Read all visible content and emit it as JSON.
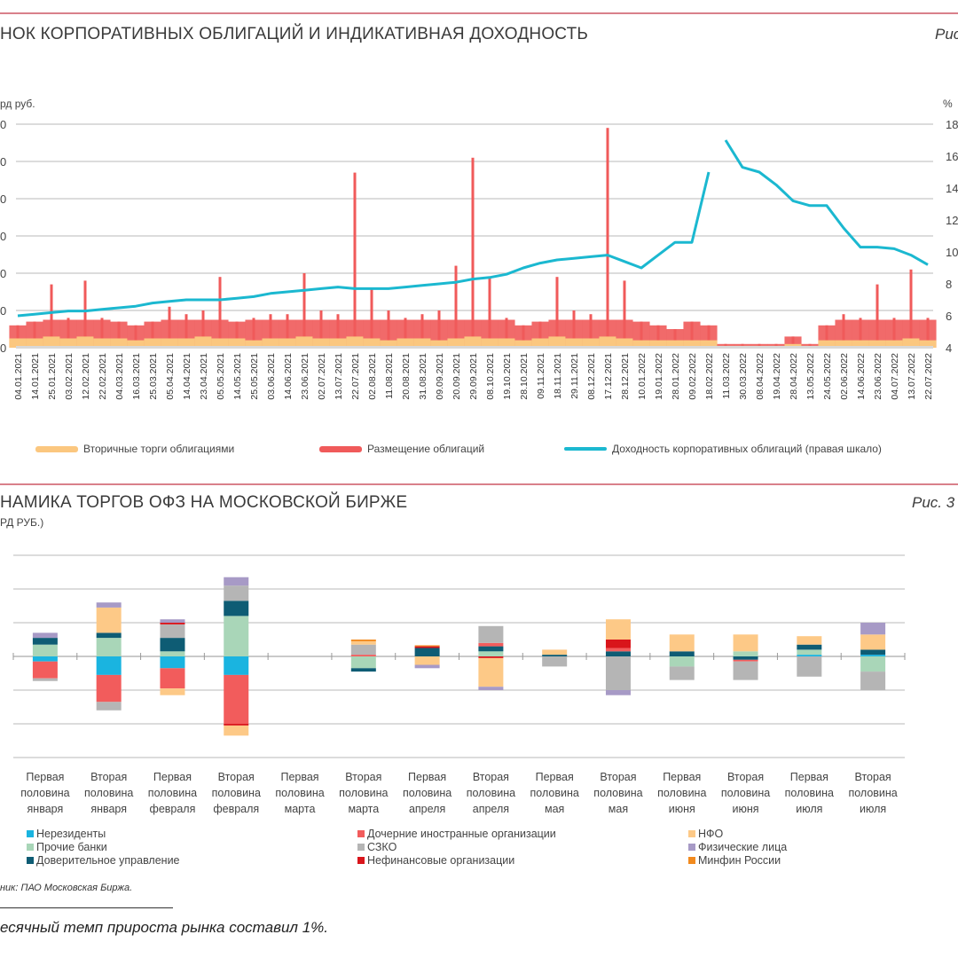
{
  "chart_data": [
    {
      "type": "bar+line",
      "title": "НОК КОРПОРАТИВНЫХ ОБЛИГАЦИЙ И ИНДИКАТИВНАЯ ДОХОДНОСТЬ",
      "figure_label": "Рис",
      "ylabel_left": "рд руб.",
      "ylabel_right": "%",
      "left_tick_labels": [
        "0",
        "0",
        "0",
        "0",
        "0",
        "0",
        "0"
      ],
      "right_ticks": [
        18,
        16,
        14,
        12,
        10,
        8,
        6,
        4
      ],
      "ylim_right": [
        4,
        18
      ],
      "ylim_left_gridsteps": [
        0,
        6
      ],
      "grid": true,
      "legend_position": "bottom",
      "categories": [
        "04.01.2021",
        "14.01.2021",
        "25.01.2021",
        "03.02.2021",
        "12.02.2021",
        "22.02.2021",
        "04.03.2021",
        "16.03.2021",
        "25.03.2021",
        "05.04.2021",
        "14.04.2021",
        "23.04.2021",
        "05.05.2021",
        "14.05.2021",
        "25.05.2021",
        "03.06.2021",
        "14.06.2021",
        "23.06.2021",
        "02.07.2021",
        "13.07.2021",
        "22.07.2021",
        "02.08.2021",
        "11.08.2021",
        "20.08.2021",
        "31.08.2021",
        "09.09.2021",
        "20.09.2021",
        "29.09.2021",
        "08.10.2021",
        "19.10.2021",
        "28.10.2021",
        "09.11.2021",
        "18.11.2021",
        "29.11.2021",
        "08.12.2021",
        "17.12.2021",
        "28.12.2021",
        "10.01.2022",
        "19.01.2022",
        "28.01.2022",
        "09.02.2022",
        "18.02.2022",
        "11.03.2022",
        "30.03.2022",
        "08.04.2022",
        "19.04.2022",
        "28.04.2022",
        "13.05.2022",
        "24.05.2022",
        "02.06.2022",
        "14.06.2022",
        "23.06.2022",
        "04.07.2022",
        "13.07.2022",
        "22.07.2022"
      ],
      "series": [
        {
          "name": "Вторичные торги облигациями",
          "type": "bar",
          "axis": "left",
          "color": "#fbc77f",
          "values": [
            0.25,
            0.25,
            0.3,
            0.25,
            0.3,
            0.25,
            0.25,
            0.2,
            0.25,
            0.25,
            0.25,
            0.3,
            0.25,
            0.25,
            0.2,
            0.25,
            0.25,
            0.3,
            0.25,
            0.25,
            0.3,
            0.25,
            0.2,
            0.25,
            0.25,
            0.2,
            0.25,
            0.3,
            0.25,
            0.25,
            0.2,
            0.25,
            0.3,
            0.25,
            0.25,
            0.3,
            0.25,
            0.2,
            0.2,
            0.2,
            0.2,
            0.2,
            0.05,
            0.05,
            0.05,
            0.05,
            0.1,
            0.05,
            0.2,
            0.2,
            0.2,
            0.2,
            0.2,
            0.25,
            0.2
          ]
        },
        {
          "name": "Размещение облигаций",
          "type": "bar",
          "axis": "left",
          "color": "#f05a5a",
          "values": [
            0.6,
            0.7,
            1.7,
            0.8,
            1.8,
            0.8,
            0.7,
            0.6,
            0.7,
            1.1,
            0.9,
            1.0,
            1.9,
            0.7,
            0.8,
            0.9,
            0.9,
            2.0,
            1.0,
            0.9,
            4.7,
            1.6,
            1.0,
            0.8,
            0.9,
            1.0,
            2.2,
            5.1,
            1.9,
            0.8,
            0.6,
            0.7,
            1.9,
            1.0,
            0.9,
            5.9,
            1.8,
            0.7,
            0.6,
            0.5,
            0.7,
            0.6,
            0.1,
            0.1,
            0.1,
            0.1,
            0.3,
            0.1,
            0.6,
            0.9,
            0.8,
            1.7,
            0.8,
            2.1,
            0.8
          ]
        },
        {
          "name": "Доходность корпоративных облигаций (правая шкало)",
          "type": "line",
          "axis": "right",
          "color": "#1bb8d0",
          "values": [
            6.0,
            6.1,
            6.2,
            6.3,
            6.3,
            6.4,
            6.5,
            6.6,
            6.8,
            6.9,
            7.0,
            7.0,
            7.0,
            7.1,
            7.2,
            7.4,
            7.5,
            7.6,
            7.7,
            7.8,
            7.7,
            7.7,
            7.7,
            7.8,
            7.9,
            8.0,
            8.1,
            8.3,
            8.4,
            8.6,
            9.0,
            9.3,
            9.5,
            9.6,
            9.7,
            9.8,
            9.4,
            9.0,
            9.8,
            10.6,
            10.6,
            15.0,
            17.0,
            15.3,
            15.0,
            14.2,
            13.2,
            12.9,
            12.9,
            11.5,
            10.3,
            10.3,
            10.2,
            9.8,
            9.2
          ]
        }
      ]
    },
    {
      "type": "stacked-bar",
      "title": "НАМИКА ТОРГОВ ОФЗ НА МОСКОВСКОЙ БИРЖЕ",
      "figure_label": "Рис. 3",
      "ylabel": "РД РУБ.)",
      "ylim_gridsteps": [
        -3,
        3
      ],
      "grid": true,
      "legend_position": "bottom",
      "categories": [
        [
          "Первая",
          "половина",
          "января"
        ],
        [
          "Вторая",
          "половина",
          "января"
        ],
        [
          "Первая",
          "половина",
          "февраля"
        ],
        [
          "Вторая",
          "половина",
          "февраля"
        ],
        [
          "Первая",
          "половина",
          "марта"
        ],
        [
          "Вторая",
          "половина",
          "марта"
        ],
        [
          "Первая",
          "половина",
          "апреля"
        ],
        [
          "Вторая",
          "половина",
          "апреля"
        ],
        [
          "Первая",
          "половина",
          "мая"
        ],
        [
          "Вторая",
          "половина",
          "мая"
        ],
        [
          "Первая",
          "половина",
          "июня"
        ],
        [
          "Вторая",
          "половина",
          "июня"
        ],
        [
          "Первая",
          "половина",
          "июля"
        ],
        [
          "Вторая",
          "половина",
          "июля"
        ]
      ],
      "series": [
        {
          "name": "Нерезиденты",
          "color": "#1ab4e0",
          "values": [
            -0.15,
            -0.55,
            -0.35,
            -0.55,
            0,
            0,
            0,
            0,
            0,
            0,
            0,
            0,
            0.05,
            0.05
          ]
        },
        {
          "name": "Прочие банки",
          "color": "#a9d6b8",
          "values": [
            0.35,
            0.55,
            0.15,
            1.2,
            0,
            -0.35,
            0,
            0.15,
            0,
            0,
            -0.3,
            0.15,
            0.15,
            -0.45
          ]
        },
        {
          "name": "Доверительное управление",
          "color": "#0e5c74",
          "values": [
            0.2,
            0.15,
            0.4,
            0.45,
            0,
            -0.1,
            0.25,
            0.15,
            0.05,
            0.15,
            0.15,
            -0.1,
            0.15,
            0.15
          ]
        },
        {
          "name": "Дочерние иностранные организации",
          "color": "#f25c5c",
          "values": [
            -0.5,
            -0.8,
            -0.6,
            -1.45,
            0,
            0.05,
            0,
            0.1,
            0,
            0.1,
            0,
            -0.05,
            0,
            0
          ]
        },
        {
          "name": "СЗКО",
          "color": "#b5b5b5",
          "values": [
            -0.08,
            -0.25,
            0.4,
            0.45,
            0,
            0.3,
            0,
            0.5,
            -0.3,
            -1.0,
            -0.4,
            -0.55,
            -0.6,
            -0.55
          ]
        },
        {
          "name": "Нефинансовые организации",
          "color": "#d9151b",
          "values": [
            0,
            0,
            0.05,
            -0.05,
            0,
            0,
            0.05,
            -0.05,
            0,
            0.25,
            0,
            0,
            0,
            0
          ]
        },
        {
          "name": "НФО",
          "color": "#fdc987",
          "values": [
            0,
            0.75,
            -0.2,
            -0.3,
            0,
            0.1,
            -0.25,
            -0.85,
            0.15,
            0.6,
            0.5,
            0.5,
            0.25,
            0.45
          ]
        },
        {
          "name": "Физические лица",
          "color": "#a79ac6",
          "values": [
            0.15,
            0.15,
            0.1,
            0.25,
            0,
            0,
            -0.1,
            -0.1,
            0,
            -0.15,
            0,
            0,
            0,
            0.35
          ]
        },
        {
          "name": "Минфин России",
          "color": "#f28a1e",
          "values": [
            0,
            0,
            0,
            0,
            0,
            0.05,
            0.03,
            0,
            0,
            0,
            0,
            0,
            0,
            0
          ]
        }
      ]
    }
  ],
  "top_legend": [
    "Вторичные торги облигациями",
    "Размещение облигаций",
    "Доходность корпоративных облигаций (правая шкало)"
  ],
  "bottom_legend_columns": [
    [
      "Нерезиденты",
      "Прочие банки",
      "Доверительное управление"
    ],
    [
      "Дочерние иностранные организации",
      "СЗКО",
      "Нефинансовые организации"
    ],
    [
      "НФО",
      "Физические лица",
      "Минфин России"
    ]
  ],
  "source": "ник: ПАО Московская Биржа.",
  "footnote": "есячный темп прироста рынка составил 1%."
}
